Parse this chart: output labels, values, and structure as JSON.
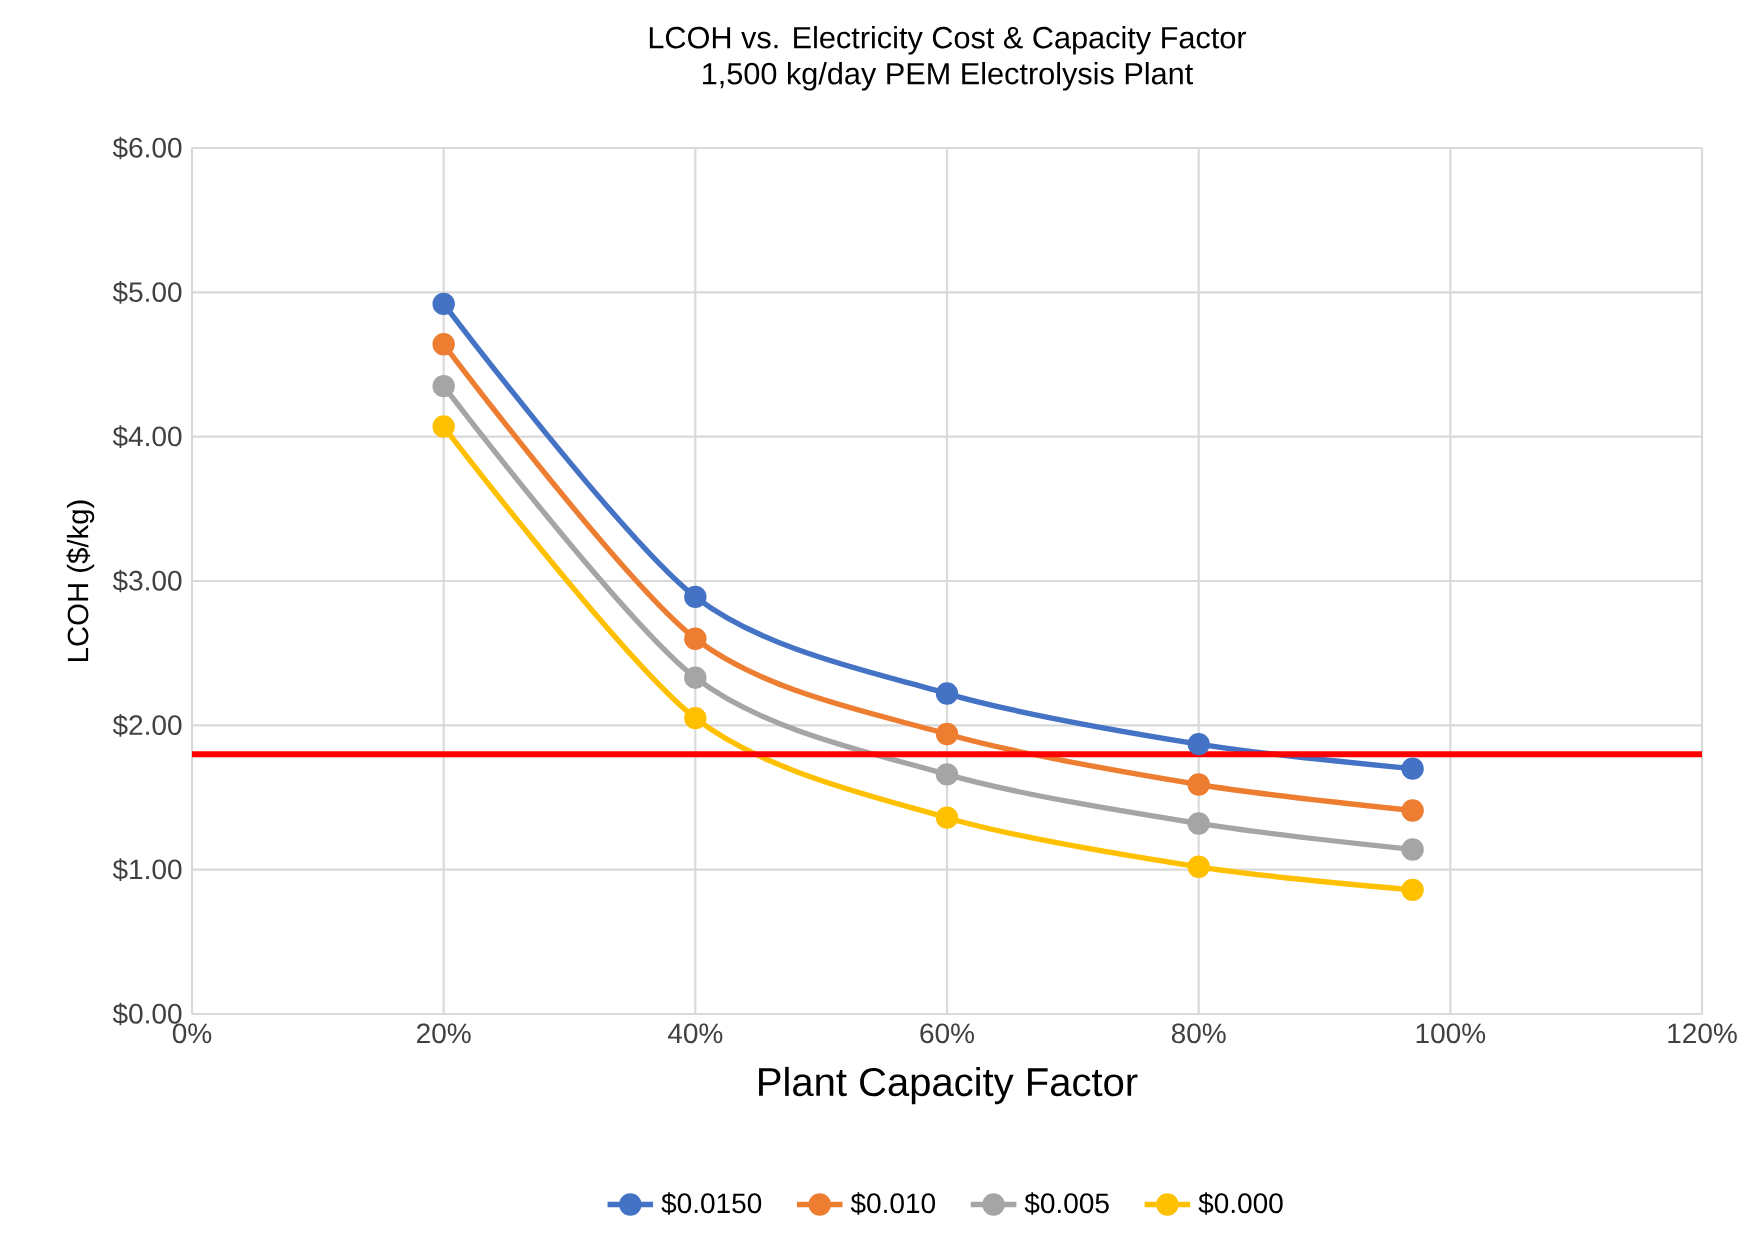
{
  "chart_data": {
    "type": "line",
    "title": "LCOH vs. Electricity Cost & Capacity Factor",
    "subtitle": "1,500 kg/day PEM Electrolysis Plant",
    "xlabel": "Plant Capacity Factor",
    "ylabel": "LCOH ($/kg)",
    "x": [
      20,
      40,
      60,
      80,
      97
    ],
    "series": [
      {
        "name": "$0.0150",
        "color": "#4472c4",
        "values": [
          4.92,
          2.89,
          2.22,
          1.87,
          1.7
        ]
      },
      {
        "name": "$0.010",
        "color": "#ed7d31",
        "values": [
          4.64,
          2.6,
          1.94,
          1.59,
          1.41
        ]
      },
      {
        "name": "$0.005",
        "color": "#a5a5a5",
        "values": [
          4.35,
          2.33,
          1.66,
          1.32,
          1.14
        ]
      },
      {
        "name": "$0.000",
        "color": "#ffc000",
        "values": [
          4.07,
          2.05,
          1.36,
          1.02,
          0.86
        ]
      }
    ],
    "xlim": [
      0,
      120
    ],
    "xticks": [
      {
        "value": 0,
        "label": "0%"
      },
      {
        "value": 20,
        "label": "20%"
      },
      {
        "value": 40,
        "label": "40%"
      },
      {
        "value": 60,
        "label": "60%"
      },
      {
        "value": 80,
        "label": "80%"
      },
      {
        "value": 100,
        "label": "100%"
      },
      {
        "value": 120,
        "label": "120%"
      }
    ],
    "ylim": [
      0,
      6
    ],
    "yticks": [
      {
        "value": 0,
        "label": "$0.00"
      },
      {
        "value": 1,
        "label": "$1.00"
      },
      {
        "value": 2,
        "label": "$2.00"
      },
      {
        "value": 3,
        "label": "$3.00"
      },
      {
        "value": 4,
        "label": "$4.00"
      },
      {
        "value": 5,
        "label": "$5.00"
      },
      {
        "value": 6,
        "label": "$6.00"
      }
    ],
    "ref_lines": [
      {
        "axis": "y",
        "value": 1.8,
        "color": "#ff0000"
      }
    ],
    "grid": true,
    "legend": "bottom",
    "marker": "circle",
    "line_style": "solid"
  }
}
